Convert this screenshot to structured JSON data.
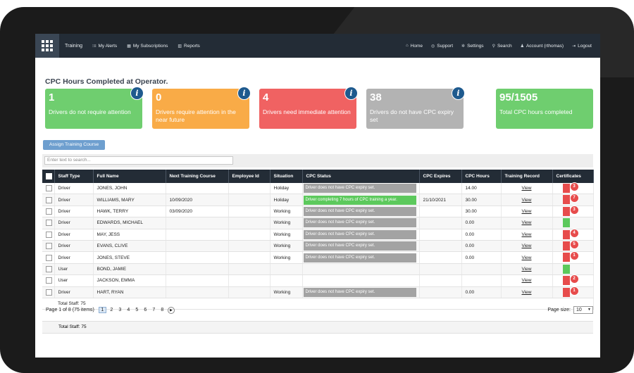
{
  "nav": {
    "brand": "Training",
    "left_items": [
      {
        "icon": "alerts-icon",
        "glyph": "⁝≡",
        "label": "My Alerts"
      },
      {
        "icon": "subscriptions-icon",
        "glyph": "▦",
        "label": "My Subscriptions"
      },
      {
        "icon": "reports-icon",
        "glyph": "▥",
        "label": "Reports"
      }
    ],
    "right_items": [
      {
        "icon": "home-icon",
        "glyph": "⌂",
        "label": "Home"
      },
      {
        "icon": "support-icon",
        "glyph": "◎",
        "label": "Support"
      },
      {
        "icon": "settings-icon",
        "glyph": "✲",
        "label": "Settings"
      },
      {
        "icon": "search-icon",
        "glyph": "⚲",
        "label": "Search"
      },
      {
        "icon": "account-icon",
        "glyph": "♟",
        "label": "Account (rthomas)"
      },
      {
        "icon": "logout-icon",
        "glyph": "⇥",
        "label": "Logout"
      }
    ]
  },
  "page": {
    "title": "CPC Hours Completed at Operator."
  },
  "cards": [
    {
      "value": "1",
      "label": "Drivers do not require attention",
      "color": "#6fce6f",
      "info": true
    },
    {
      "value": "0",
      "label": "Drivers require attention in the near future",
      "color": "#f9ab47",
      "info": true
    },
    {
      "value": "4",
      "label": "Drivers need immediate attention",
      "color": "#f06262",
      "info": true
    },
    {
      "value": "38",
      "label": "Drivers do not have CPC expiry set",
      "color": "#b3b3b3",
      "info": true
    },
    {
      "value": "95/1505",
      "label": "Total CPC hours completed",
      "color": "#6fce6f",
      "info": false
    }
  ],
  "toolbar": {
    "assign_label": "Assign Training Course",
    "search_placeholder": "Enter text to search..."
  },
  "table": {
    "columns": [
      "Staff Type",
      "Full Name",
      "Next Training Course",
      "Employee Id",
      "Situation",
      "CPC Status",
      "CPC Expires",
      "CPC Hours",
      "Training Record",
      "Certificates"
    ],
    "rows": [
      {
        "type": "Driver",
        "name": "JONES, JOHN",
        "next": "",
        "emp": "",
        "situation": "Holiday",
        "status": "Driver does not have CPC expiry set.",
        "status_color": "grey",
        "expires": "",
        "hours": "14.00",
        "record": "View",
        "cert_color": "red",
        "cert_count": "3"
      },
      {
        "type": "Driver",
        "name": "WILLIAMS, MARY",
        "next": "10/09/2020",
        "emp": "",
        "situation": "Holiday",
        "status": "Driver completing 7 hours of CPC training a year.",
        "status_color": "green",
        "expires": "21/10/2021",
        "hours": "30.00",
        "record": "View",
        "cert_color": "red",
        "cert_count": "7"
      },
      {
        "type": "Driver",
        "name": "HAWK, TERRY",
        "next": "03/09/2020",
        "emp": "",
        "situation": "Working",
        "status": "Driver does not have CPC expiry set.",
        "status_color": "grey",
        "expires": "",
        "hours": "30.00",
        "record": "View",
        "cert_color": "red",
        "cert_count": "3"
      },
      {
        "type": "Driver",
        "name": "EDWARDS, MICHAEL",
        "next": "",
        "emp": "",
        "situation": "Working",
        "status": "Driver does not have CPC expiry set.",
        "status_color": "grey",
        "expires": "",
        "hours": "0.00",
        "record": "View",
        "cert_color": "green",
        "cert_count": ""
      },
      {
        "type": "Driver",
        "name": "MAY, JESS",
        "next": "",
        "emp": "",
        "situation": "Working",
        "status": "Driver does not have CPC expiry set.",
        "status_color": "grey",
        "expires": "",
        "hours": "0.00",
        "record": "View",
        "cert_color": "red",
        "cert_count": "4"
      },
      {
        "type": "Driver",
        "name": "EVANS, CLIVE",
        "next": "",
        "emp": "",
        "situation": "Working",
        "status": "Driver does not have CPC expiry set.",
        "status_color": "grey",
        "expires": "",
        "hours": "0.00",
        "record": "View",
        "cert_color": "red",
        "cert_count": "5"
      },
      {
        "type": "Driver",
        "name": "JONES, STEVE",
        "next": "",
        "emp": "",
        "situation": "Working",
        "status": "Driver does not have CPC expiry set.",
        "status_color": "grey",
        "expires": "",
        "hours": "0.00",
        "record": "View",
        "cert_color": "red",
        "cert_count": "1"
      },
      {
        "type": "User",
        "name": "BOND, JAMIE",
        "next": "",
        "emp": "",
        "situation": "",
        "status": "",
        "status_color": "",
        "expires": "",
        "hours": "",
        "record": "View",
        "cert_color": "green",
        "cert_count": ""
      },
      {
        "type": "User",
        "name": "JACKSON, EMMA",
        "next": "",
        "emp": "",
        "situation": "",
        "status": "",
        "status_color": "",
        "expires": "",
        "hours": "",
        "record": "View",
        "cert_color": "red",
        "cert_count": "2"
      },
      {
        "type": "Driver",
        "name": "HART, RYAN",
        "next": "",
        "emp": "",
        "situation": "Working",
        "status": "Driver does not have CPC expiry set.",
        "status_color": "grey",
        "expires": "",
        "hours": "0.00",
        "record": "View",
        "cert_color": "red",
        "cert_count": "1"
      }
    ],
    "total_label": "Total Staff: 75"
  },
  "pager": {
    "summary": "Page 1 of 8 (75 items)",
    "pages": [
      "1",
      "2",
      "3",
      "4",
      "5",
      "6",
      "7",
      "8"
    ],
    "active": "1",
    "page_size_label": "Page size:",
    "page_size_value": "10"
  },
  "footer": {
    "total_label": "Total Staff: 75"
  }
}
